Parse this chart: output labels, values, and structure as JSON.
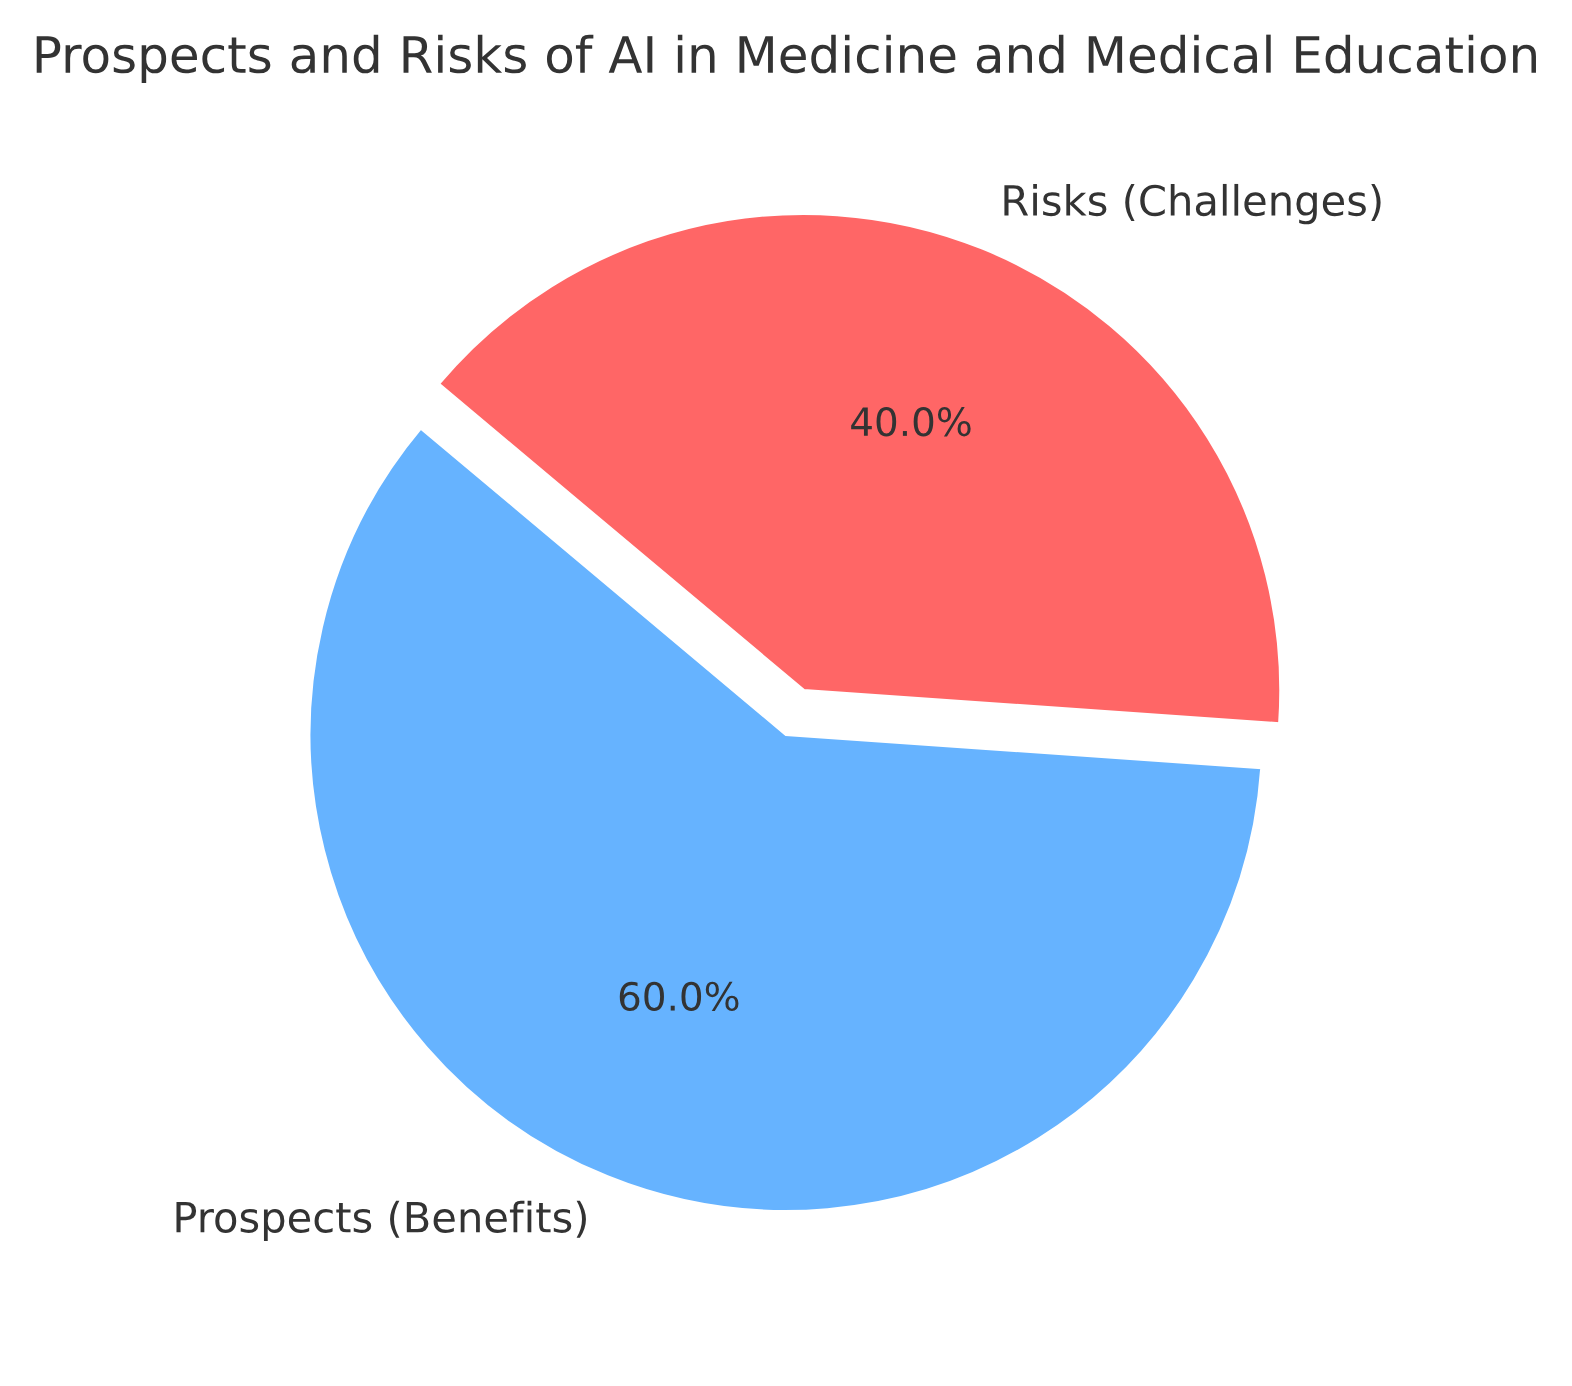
{
  "chart_data": {
    "type": "pie",
    "title": "Prospects and Risks of AI in Medicine and Medical Education",
    "categories": [
      "Prospects (Benefits)",
      "Risks (Challenges)"
    ],
    "values": [
      60,
      40
    ],
    "colors": [
      "#66b3ff",
      "#ff6666"
    ],
    "value_labels": [
      "60.0%",
      "40.0%"
    ]
  }
}
